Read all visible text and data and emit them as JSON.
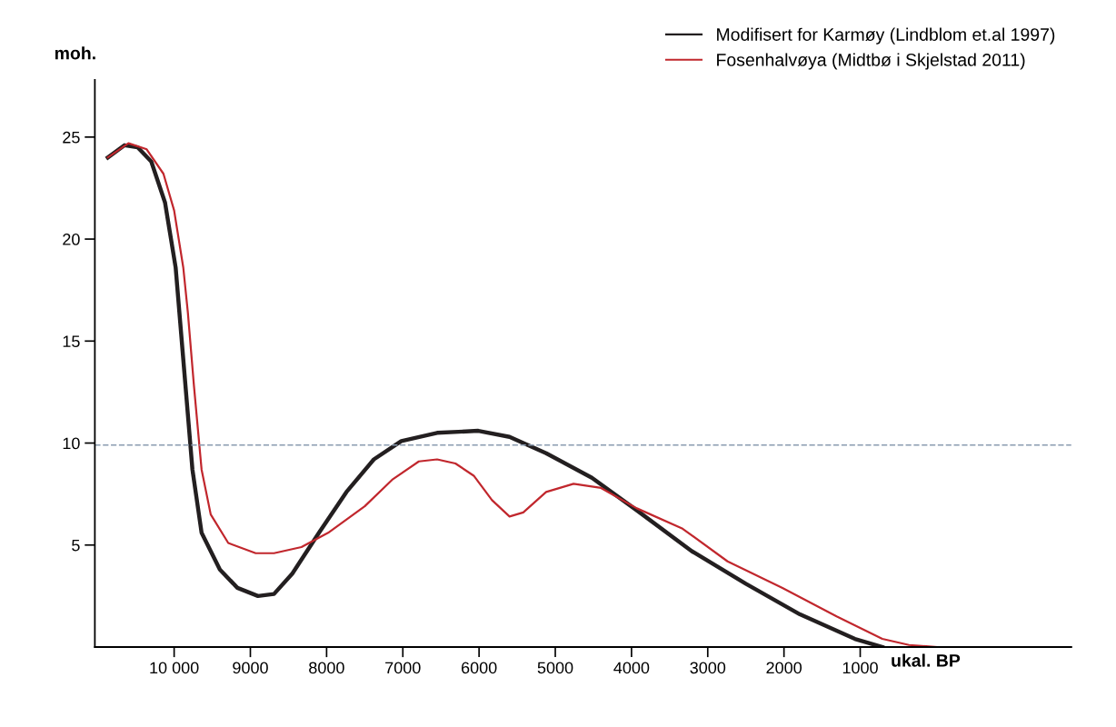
{
  "chart_data": {
    "type": "line",
    "xlabel": "ukal. BP",
    "ylabel": "moh.",
    "xlim": [
      11040,
      -1770
    ],
    "xticks": [
      {
        "value": 10000,
        "label": "10 000"
      },
      9000,
      8000,
      7000,
      6000,
      5000,
      4000,
      3000,
      2000,
      1000
    ],
    "ylim": [
      0,
      27.8
    ],
    "yticks": [
      5,
      10,
      15,
      20,
      25
    ],
    "grid": false,
    "legend": "top right",
    "marker": "none",
    "line_style": "solid",
    "ref_lines": [
      {
        "axis": "y",
        "value": 9.9,
        "label": null,
        "color": "#8a9bb0",
        "line_style": "dashed"
      }
    ],
    "series": [
      {
        "name": "Modifisert for Karmøy (Lindblom et.al 1997)",
        "color": "#231f20",
        "x": [
          10870,
          10650,
          10480,
          10300,
          10120,
          9980,
          9880,
          9760,
          9640,
          9400,
          9170,
          8900,
          8690,
          8450,
          8100,
          7740,
          7380,
          7020,
          6550,
          6010,
          5600,
          5120,
          4520,
          3930,
          3210,
          2500,
          1790,
          1070,
          710
        ],
        "values": [
          24.0,
          24.6,
          24.5,
          23.8,
          21.8,
          18.6,
          14.1,
          8.7,
          5.6,
          3.8,
          2.9,
          2.5,
          2.6,
          3.6,
          5.6,
          7.6,
          9.2,
          10.1,
          10.5,
          10.6,
          10.3,
          9.5,
          8.3,
          6.7,
          4.7,
          3.1,
          1.6,
          0.4,
          0.0
        ]
      },
      {
        "name": "Fosenhalvøya (Midtbø i Skjelstad 2011)",
        "color": "#c1272d",
        "x": [
          10870,
          10600,
          10360,
          10140,
          10000,
          9880,
          9820,
          9740,
          9640,
          9520,
          9290,
          8930,
          8690,
          8330,
          7980,
          7500,
          7140,
          6790,
          6550,
          6310,
          6070,
          5830,
          5600,
          5420,
          5120,
          4760,
          4400,
          3930,
          3330,
          2740,
          2020,
          1310,
          710,
          360,
          0
        ],
        "values": [
          24.0,
          24.7,
          24.4,
          23.2,
          21.4,
          18.6,
          16.4,
          12.8,
          8.7,
          6.5,
          5.1,
          4.6,
          4.6,
          4.9,
          5.6,
          6.9,
          8.2,
          9.1,
          9.2,
          9.0,
          8.4,
          7.2,
          6.4,
          6.6,
          7.6,
          8.0,
          7.8,
          6.8,
          5.8,
          4.2,
          2.9,
          1.5,
          0.4,
          0.1,
          0.0
        ]
      }
    ]
  }
}
